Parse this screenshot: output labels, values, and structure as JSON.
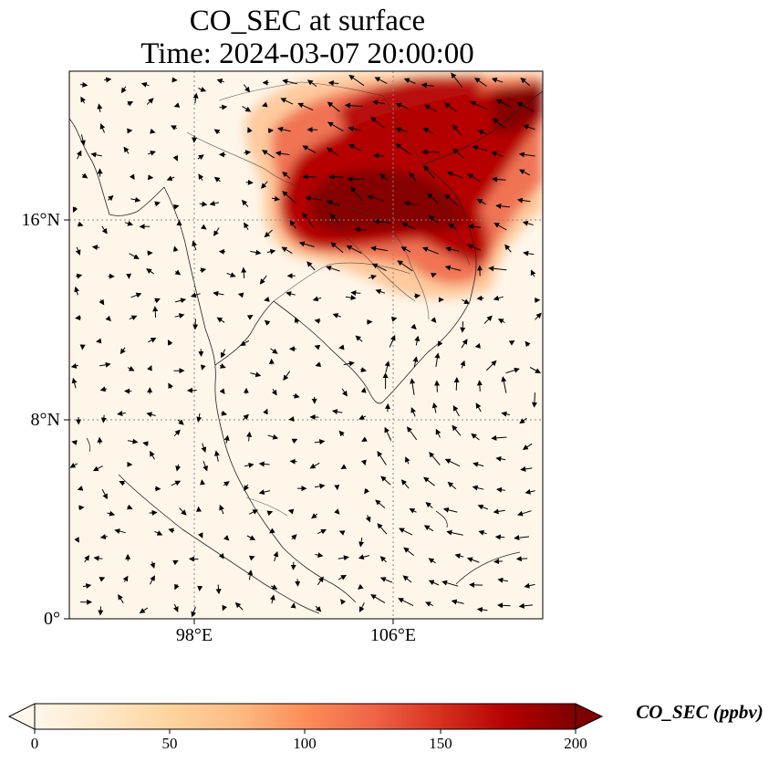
{
  "title": {
    "line1": "CO_SEC at surface",
    "line2": "Time: 2024-03-07 20:00:00"
  },
  "axes": {
    "y_ticks": [
      "16°N",
      "8°N",
      "0°"
    ],
    "x_ticks": [
      "98°E",
      "106°E"
    ]
  },
  "colorbar": {
    "label": "CO_SEC (ppbv)",
    "ticks": [
      "0",
      "50",
      "100",
      "150",
      "200"
    ],
    "range": [
      0,
      200
    ],
    "extend": "both",
    "colormap": "OrRd",
    "colors": [
      "#fff7ec",
      "#fee8c8",
      "#fdd49e",
      "#fdbb84",
      "#fc8d59",
      "#ef6548",
      "#d7301f",
      "#b30000",
      "#7f0000"
    ]
  },
  "map": {
    "lon_range": [
      93,
      112
    ],
    "lat_range": [
      0,
      22
    ],
    "gridlines": "dotted",
    "plume": "high CO_SEC concentrations over northern Laos, northern Thailand and Vietnam",
    "wind_vectors": true
  }
}
